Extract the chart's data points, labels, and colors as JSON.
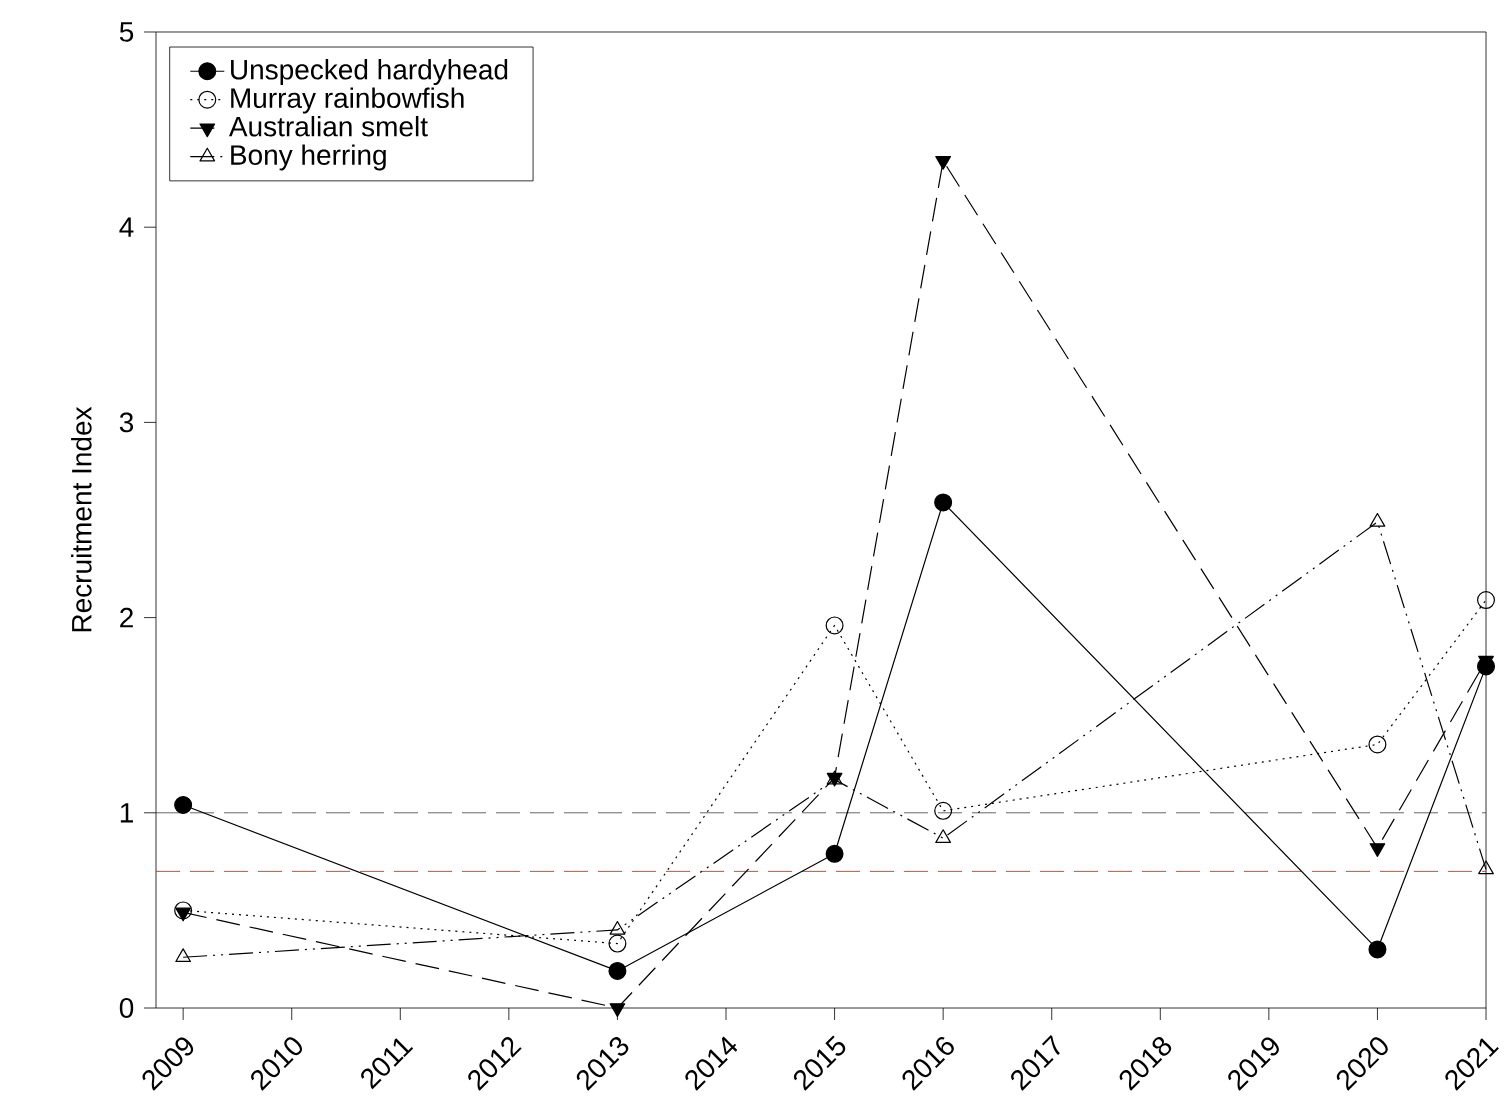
{
  "chart_data": {
    "type": "line",
    "ylabel": "Recruitment Index",
    "x": [
      2009,
      2013,
      2015,
      2016,
      2020,
      2021
    ],
    "series": [
      {
        "name": "Unspecked hardyhead",
        "color": "#000000",
        "marker": "circle",
        "line_style": "solid",
        "values": [
          1.04,
          0.19,
          0.79,
          2.59,
          0.3,
          1.75
        ]
      },
      {
        "name": "Murray rainbowfish",
        "color": "#000000",
        "marker": "circle",
        "line_style": "dotted",
        "values": [
          0.5,
          0.33,
          1.96,
          1.01,
          1.35,
          2.09
        ]
      },
      {
        "name": "Australian smelt",
        "color": "#000000",
        "marker": "triangle",
        "line_style": "dashed",
        "values": [
          0.49,
          0.0,
          1.18,
          4.34,
          0.82,
          1.78
        ]
      },
      {
        "name": "Bony herring",
        "color": "#000000",
        "marker": "triangle",
        "line_style": "dashdotdotted",
        "values": [
          0.26,
          0.4,
          1.17,
          0.87,
          2.49,
          0.71
        ]
      }
    ],
    "xlim": [
      2008.75,
      2021
    ],
    "ylim": [
      0,
      5
    ],
    "xticks": [
      2009,
      2010,
      2011,
      2012,
      2013,
      2014,
      2015,
      2016,
      2017,
      2018,
      2019,
      2020,
      2021
    ],
    "yticks": [
      0,
      1,
      2,
      3,
      4,
      5
    ],
    "ref_lines": [
      {
        "axis": "y",
        "value": 1,
        "color": "#404040",
        "line_style": "dashed"
      },
      {
        "axis": "y",
        "value": 0.7,
        "color": "#ff0000",
        "line_style": "dashed"
      }
    ],
    "grid": false,
    "legend": "top left"
  }
}
